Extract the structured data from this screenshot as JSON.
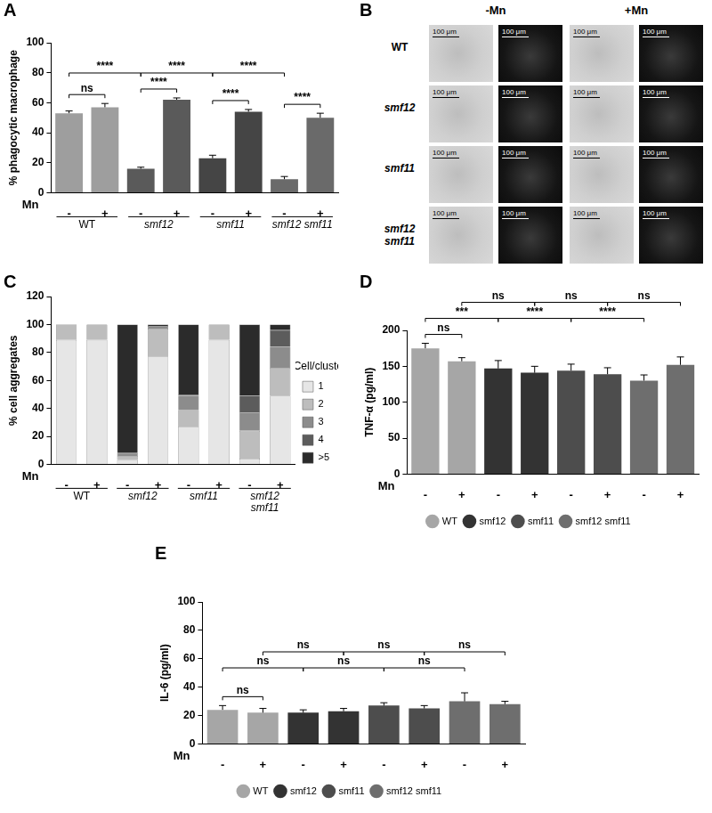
{
  "chart_data": [
    {
      "panel": "A",
      "type": "bar",
      "y_label": "% phagocytic macrophage",
      "x_label": "Mn",
      "categories": [
        "-",
        "+",
        "-",
        "+",
        "-",
        "+",
        "-",
        "+"
      ],
      "series": [
        {
          "name": "WT",
          "color": "#9e9e9e",
          "values": [
            53,
            57,
            null,
            null,
            null,
            null,
            null,
            null
          ],
          "errors": [
            1.5,
            2.5,
            null,
            null,
            null,
            null,
            null,
            null
          ]
        },
        {
          "name": "smf12",
          "color": "#5a5a5a",
          "values": [
            null,
            null,
            16,
            62,
            null,
            null,
            null,
            null
          ],
          "errors": [
            null,
            null,
            1,
            1.2,
            null,
            null,
            null,
            null
          ]
        },
        {
          "name": "smf11",
          "color": "#454545",
          "values": [
            null,
            null,
            null,
            null,
            23,
            54,
            null,
            null
          ],
          "errors": [
            null,
            null,
            null,
            null,
            2,
            1.5,
            null,
            null
          ]
        },
        {
          "name": "smf12 smf11",
          "color": "#6a6a6a",
          "values": [
            null,
            null,
            null,
            null,
            null,
            null,
            9,
            50
          ],
          "errors": [
            null,
            null,
            null,
            null,
            null,
            null,
            1.8,
            3
          ]
        }
      ],
      "comparisons": [
        {
          "between": [
            0,
            1
          ],
          "label": "ns"
        },
        {
          "between": [
            2,
            3
          ],
          "label": "****"
        },
        {
          "between": [
            4,
            5
          ],
          "label": "****"
        },
        {
          "between": [
            6,
            7
          ],
          "label": "****"
        },
        {
          "between": [
            0,
            2
          ],
          "label": "****"
        },
        {
          "between": [
            2,
            4
          ],
          "label": "****"
        },
        {
          "between": [
            4,
            6
          ],
          "label": "****"
        }
      ],
      "ylim": [
        0,
        100
      ],
      "yticks": [
        0,
        20,
        40,
        60,
        80,
        100
      ],
      "grid": false
    },
    {
      "panel": "B",
      "type": "image_grid",
      "columns": [
        "-Mn",
        "+Mn"
      ],
      "rows": [
        "WT",
        "smf12",
        "smf11",
        "smf12 smf11"
      ],
      "scale_bar": "100 μm"
    },
    {
      "panel": "C",
      "type": "bar",
      "stacked": true,
      "y_label": "% cell aggregates",
      "x_label": "Mn",
      "categories": [
        "-",
        "+",
        "-",
        "+",
        "-",
        "+",
        "-",
        "+"
      ],
      "groups": [
        "WT",
        "smf12",
        "smf11",
        "smf12 smf11"
      ],
      "legend": "right",
      "legend_title": "#Cell/cluster",
      "series": [
        {
          "name": "1",
          "color": "#e6e6e6",
          "values": [
            89,
            89,
            3,
            77,
            27,
            89,
            4,
            49
          ]
        },
        {
          "name": "2",
          "color": "#bdbdbd",
          "values": [
            11,
            11,
            3,
            20,
            12,
            11,
            20,
            20
          ]
        },
        {
          "name": "3",
          "color": "#8c8c8c",
          "values": [
            0,
            0,
            2,
            2,
            10,
            0,
            13,
            15
          ]
        },
        {
          "name": "4",
          "color": "#5c5c5c",
          "values": [
            0,
            0,
            0,
            0,
            1,
            0,
            12,
            12
          ]
        },
        {
          "name": ">5",
          "color": "#2b2b2b",
          "values": [
            0,
            0,
            92,
            1,
            50,
            0,
            51,
            4
          ]
        }
      ],
      "ylim": [
        0,
        120
      ],
      "yticks": [
        0,
        20,
        40,
        60,
        80,
        100,
        120
      ],
      "grid": false
    },
    {
      "panel": "D",
      "type": "bar",
      "y_label": "TNF-α (pg/ml)",
      "x_label": "Mn",
      "legend": "bottom",
      "categories": [
        "-",
        "+",
        "-",
        "+",
        "-",
        "+",
        "-",
        "+"
      ],
      "series": [
        {
          "name": "WT",
          "color": "#a6a6a6",
          "values": [
            175,
            157,
            null,
            null,
            null,
            null,
            null,
            null
          ],
          "errors": [
            7,
            5,
            null,
            null,
            null,
            null,
            null,
            null
          ]
        },
        {
          "name": "smf12",
          "color": "#333333",
          "values": [
            null,
            null,
            147,
            141,
            null,
            null,
            null,
            null
          ],
          "errors": [
            null,
            null,
            11,
            9,
            null,
            null,
            null,
            null
          ]
        },
        {
          "name": "smf11",
          "color": "#4d4d4d",
          "values": [
            null,
            null,
            null,
            null,
            144,
            139,
            null,
            null
          ],
          "errors": [
            null,
            null,
            null,
            null,
            9,
            9,
            null,
            null
          ]
        },
        {
          "name": "smf12 smf11",
          "color": "#6e6e6e",
          "values": [
            null,
            null,
            null,
            null,
            null,
            null,
            130,
            152
          ],
          "errors": [
            null,
            null,
            null,
            null,
            null,
            null,
            8,
            11
          ]
        }
      ],
      "comparisons": [
        {
          "between": [
            0,
            1
          ],
          "label": "ns"
        },
        {
          "between": [
            0,
            2
          ],
          "label": "***"
        },
        {
          "between": [
            2,
            4
          ],
          "label": "****"
        },
        {
          "between": [
            4,
            6
          ],
          "label": "****"
        },
        {
          "between": [
            1,
            3
          ],
          "label": "ns"
        },
        {
          "between": [
            3,
            5
          ],
          "label": "ns"
        },
        {
          "between": [
            5,
            7
          ],
          "label": "ns"
        }
      ],
      "ylim": [
        0,
        200
      ],
      "yticks": [
        0,
        50,
        100,
        150,
        200
      ],
      "grid": false
    },
    {
      "panel": "E",
      "type": "bar",
      "y_label": "IL-6 (pg/ml)",
      "x_label": "Mn",
      "legend": "bottom",
      "categories": [
        "-",
        "+",
        "-",
        "+",
        "-",
        "+",
        "-",
        "+"
      ],
      "series": [
        {
          "name": "WT",
          "color": "#a6a6a6",
          "values": [
            24,
            22,
            null,
            null,
            null,
            null,
            null,
            null
          ],
          "errors": [
            3,
            3,
            null,
            null,
            null,
            null,
            null,
            null
          ]
        },
        {
          "name": "smf12",
          "color": "#333333",
          "values": [
            null,
            null,
            22,
            23,
            null,
            null,
            null,
            null
          ],
          "errors": [
            null,
            null,
            2,
            2,
            null,
            null,
            null,
            null
          ]
        },
        {
          "name": "smf11",
          "color": "#4d4d4d",
          "values": [
            null,
            null,
            null,
            null,
            27,
            25,
            null,
            null
          ],
          "errors": [
            null,
            null,
            null,
            null,
            2,
            2,
            null,
            null
          ]
        },
        {
          "name": "smf12 smf11",
          "color": "#6e6e6e",
          "values": [
            null,
            null,
            null,
            null,
            null,
            null,
            30,
            28
          ],
          "errors": [
            null,
            null,
            null,
            null,
            null,
            null,
            6,
            2
          ]
        }
      ],
      "comparisons": [
        {
          "between": [
            0,
            1
          ],
          "label": "ns"
        },
        {
          "between": [
            0,
            2
          ],
          "label": "ns"
        },
        {
          "between": [
            2,
            4
          ],
          "label": "ns"
        },
        {
          "between": [
            4,
            6
          ],
          "label": "ns"
        },
        {
          "between": [
            1,
            3
          ],
          "label": "ns"
        },
        {
          "between": [
            3,
            5
          ],
          "label": "ns"
        },
        {
          "between": [
            5,
            7
          ],
          "label": "ns"
        }
      ],
      "ylim": [
        0,
        100
      ],
      "yticks": [
        0,
        20,
        40,
        60,
        80,
        100
      ],
      "grid": false
    }
  ]
}
